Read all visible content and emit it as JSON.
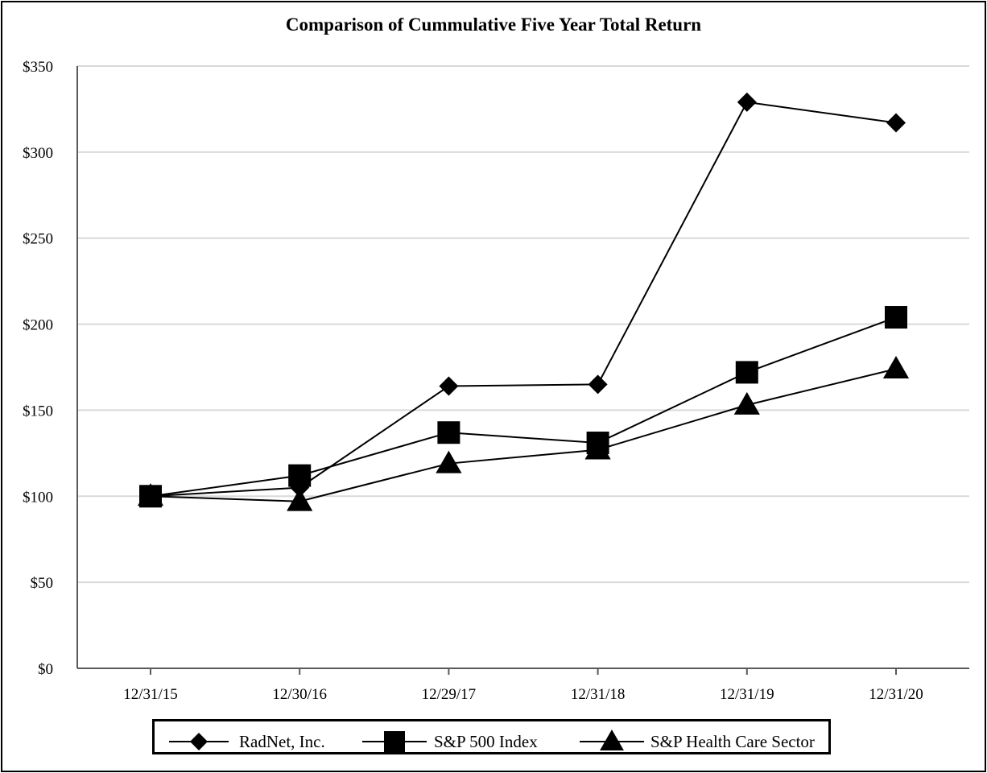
{
  "chart_data": {
    "type": "line",
    "title": "Comparison of Cummulative Five Year Total Return",
    "xlabel": "",
    "ylabel": "",
    "categories": [
      "12/31/15",
      "12/30/16",
      "12/29/17",
      "12/31/18",
      "12/31/19",
      "12/31/20"
    ],
    "ylim": [
      0,
      350
    ],
    "yticks": [
      "$0",
      "$50",
      "$100",
      "$150",
      "$200",
      "$250",
      "$300",
      "$350"
    ],
    "ytick_values": [
      0,
      50,
      100,
      150,
      200,
      250,
      300,
      350
    ],
    "grid": true,
    "legend_position": "bottom",
    "series": [
      {
        "name": "RadNet, Inc.",
        "marker": "diamond",
        "values": [
          100,
          105,
          164,
          165,
          329,
          317
        ]
      },
      {
        "name": "S&P 500 Index",
        "marker": "square",
        "values": [
          100,
          112,
          137,
          131,
          172,
          204
        ]
      },
      {
        "name": "S&P Health Care Sector",
        "marker": "triangle",
        "values": [
          100,
          97,
          119,
          127,
          153,
          174
        ]
      }
    ],
    "colors": {
      "line": "#000000",
      "grid": "#d9d9d9",
      "axis": "#595959"
    }
  }
}
